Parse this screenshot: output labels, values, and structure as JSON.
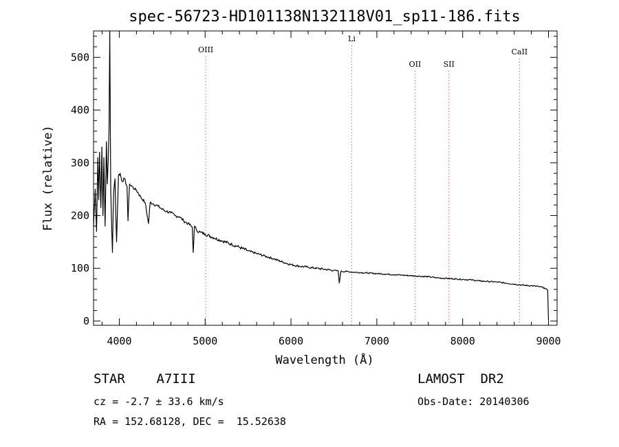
{
  "chart_data": {
    "type": "line",
    "title": "spec-56723-HD101138N132118V01_sp11-186.fits",
    "xlabel": "Wavelength (Å)",
    "ylabel": "Flux (relative)",
    "xlim": [
      3700,
      9100
    ],
    "ylim": [
      -8,
      550
    ],
    "x_ticks": [
      4000,
      5000,
      6000,
      7000,
      8000,
      9000
    ],
    "y_ticks": [
      0,
      100,
      200,
      300,
      400,
      500
    ],
    "grid": false,
    "line_color": "#000000",
    "marker_color": "#e06060",
    "spectral_lines": [
      {
        "name": "OIII",
        "x": 5007
      },
      {
        "name": "Li",
        "x": 6708
      },
      {
        "name": "OII",
        "x": 7445
      },
      {
        "name": "SII",
        "x": 7840
      },
      {
        "name": "CaII",
        "x": 8662
      }
    ],
    "series": [
      {
        "x": [
          3700,
          3720,
          3735,
          3750,
          3760,
          3770,
          3785,
          3797,
          3810,
          3820,
          3835,
          3850,
          3860,
          3870,
          3880,
          3889,
          3900,
          3920,
          3933,
          3950,
          3968,
          3990,
          4010,
          4030,
          4060,
          4090,
          4101,
          4120,
          4150,
          4180,
          4200,
          4250,
          4300,
          4340,
          4360,
          4400,
          4450,
          4500,
          4550,
          4600,
          4650,
          4700,
          4750,
          4800,
          4850,
          4861,
          4875,
          4900,
          4950,
          5000,
          5100,
          5200,
          5300,
          5400,
          5500,
          5600,
          5700,
          5800,
          5900,
          6000,
          6100,
          6200,
          6300,
          6400,
          6500,
          6550,
          6563,
          6580,
          6650,
          6700,
          6800,
          6900,
          7000,
          7100,
          7200,
          7300,
          7400,
          7500,
          7600,
          7700,
          7800,
          7900,
          8000,
          8100,
          8200,
          8300,
          8400,
          8500,
          8600,
          8700,
          8800,
          8900,
          8950,
          8990,
          9000
        ],
        "y": [
          180,
          250,
          170,
          310,
          230,
          320,
          215,
          330,
          200,
          310,
          180,
          340,
          260,
          300,
          360,
          550,
          250,
          130,
          240,
          270,
          150,
          275,
          280,
          265,
          270,
          255,
          190,
          260,
          255,
          250,
          248,
          235,
          225,
          185,
          225,
          222,
          218,
          212,
          208,
          205,
          200,
          198,
          190,
          185,
          178,
          130,
          180,
          172,
          168,
          165,
          158,
          152,
          146,
          140,
          133,
          128,
          123,
          118,
          112,
          107,
          104,
          102,
          100,
          98,
          96,
          95,
          72,
          94,
          94,
          93,
          92,
          91,
          90,
          89,
          88,
          87,
          86,
          85,
          84,
          82,
          81,
          80,
          79,
          78,
          76,
          75,
          74,
          72,
          70,
          68,
          67,
          65,
          63,
          58,
          2
        ]
      }
    ]
  },
  "info": {
    "line1_left": "STAR    A7III",
    "line1_right": "LAMOST  DR2",
    "line2_left": "cz = -2.7 ± 33.6 km/s",
    "line2_right": "Obs-Date: 20140306",
    "line3_left": "RA = 152.68128, DEC =  15.52638"
  }
}
